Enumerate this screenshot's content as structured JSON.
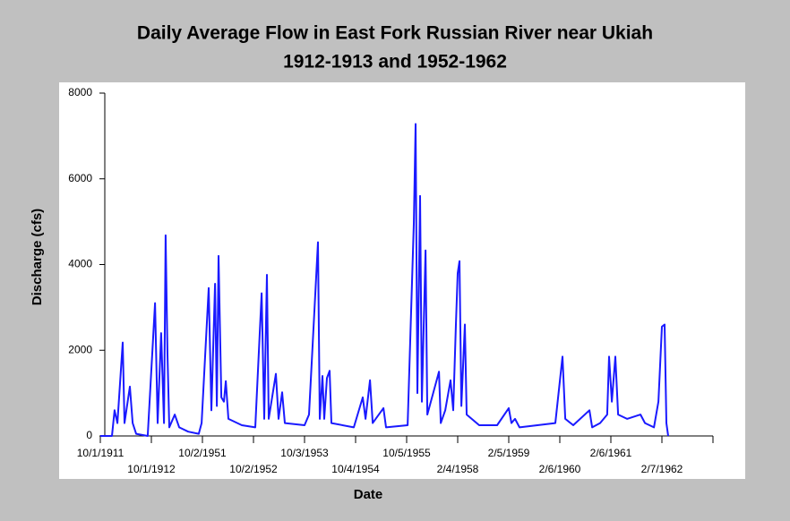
{
  "chart_data": {
    "type": "line",
    "title": "Daily Average Flow in East Fork Russian River near Ukiah",
    "subtitle": "1912-1913 and 1952-1962",
    "x_label": "Date",
    "y_label": "Discharge (cfs)",
    "xlim": [
      0,
      4380
    ],
    "ylim": [
      0,
      8000
    ],
    "yticks": [
      0,
      2000,
      4000,
      6000,
      8000
    ],
    "xticks": [
      {
        "value": 0,
        "label": "10/1/1911"
      },
      {
        "value": 365,
        "label": "10/1/1912"
      },
      {
        "value": 730,
        "label": "10/2/1951"
      },
      {
        "value": 1095,
        "label": "10/2/1952"
      },
      {
        "value": 1460,
        "label": "10/3/1953"
      },
      {
        "value": 1825,
        "label": "10/4/1954"
      },
      {
        "value": 2190,
        "label": "10/5/1955"
      },
      {
        "value": 2555,
        "label": "2/4/1958"
      },
      {
        "value": 2920,
        "label": "2/5/1959"
      },
      {
        "value": 3285,
        "label": "2/6/1960"
      },
      {
        "value": 3650,
        "label": "2/6/1961"
      },
      {
        "value": 4015,
        "label": "2/7/1962"
      }
    ],
    "series": [
      {
        "name": "Discharge",
        "color": "#1a1aff",
        "x": [
          0,
          83,
          102,
          122,
          160,
          173,
          211,
          231,
          256,
          339,
          391,
          410,
          435,
          455,
          467,
          480,
          493,
          532,
          564,
          628,
          704,
          724,
          775,
          794,
          820,
          833,
          845,
          865,
          884,
          897,
          916,
          1012,
          1108,
          1153,
          1172,
          1191,
          1204,
          1255,
          1274,
          1300,
          1319,
          1460,
          1492,
          1556,
          1569,
          1588,
          1601,
          1620,
          1639,
          1652,
          1812,
          1876,
          1896,
          1928,
          1947,
          2024,
          2043,
          2197,
          2241,
          2254,
          2267,
          2286,
          2299,
          2325,
          2338,
          2421,
          2434,
          2466,
          2504,
          2523,
          2542,
          2555,
          2568,
          2581,
          2606,
          2619,
          2709,
          2837,
          2920,
          2939,
          2965,
          2997,
          3125,
          3253,
          3304,
          3324,
          3381,
          3497,
          3516,
          3573,
          3624,
          3637,
          3657,
          3682,
          3702,
          3766,
          3862,
          3894,
          3958,
          3990,
          4015,
          4034,
          4047,
          4060
        ],
        "values": [
          0,
          0,
          600,
          300,
          2180,
          300,
          1150,
          300,
          50,
          0,
          3100,
          300,
          2400,
          300,
          4680,
          1900,
          200,
          500,
          200,
          100,
          50,
          300,
          3450,
          600,
          3550,
          700,
          4200,
          900,
          800,
          1280,
          400,
          250,
          200,
          3330,
          400,
          3760,
          400,
          1450,
          400,
          1020,
          300,
          250,
          500,
          4520,
          400,
          1400,
          400,
          1350,
          1520,
          300,
          200,
          900,
          400,
          1300,
          300,
          650,
          200,
          250,
          4950,
          7280,
          1000,
          5600,
          800,
          4330,
          500,
          1500,
          300,
          600,
          1300,
          600,
          2600,
          3800,
          4080,
          700,
          2600,
          500,
          250,
          250,
          650,
          300,
          400,
          200,
          250,
          300,
          1850,
          400,
          250,
          600,
          200,
          300,
          500,
          1850,
          800,
          1850,
          500,
          400,
          500,
          300,
          200,
          800,
          2550,
          2600,
          300,
          0
        ]
      }
    ]
  }
}
